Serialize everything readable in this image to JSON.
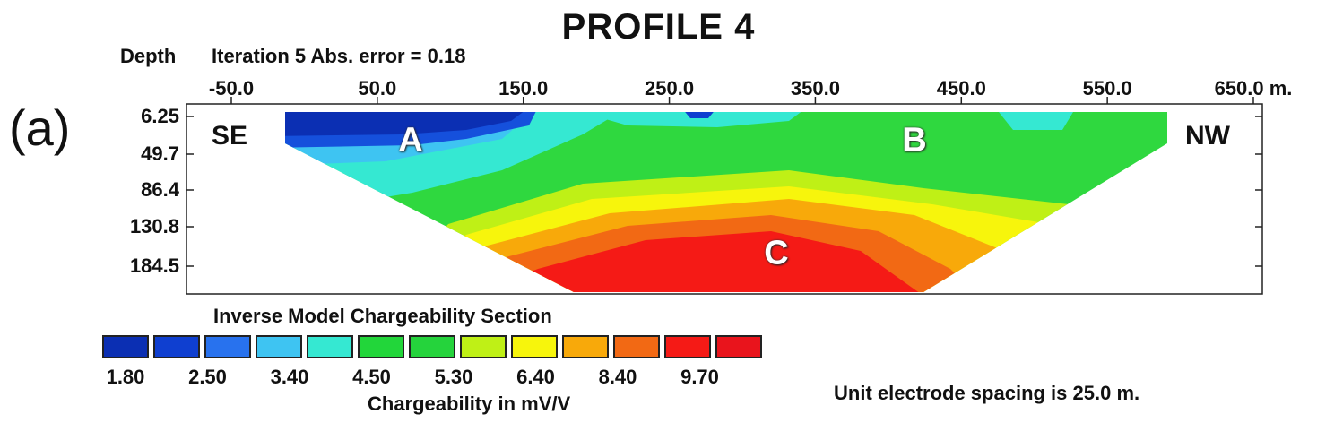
{
  "title": "PROFILE 4",
  "panel_label": "(a)",
  "header": {
    "depth_label": "Depth",
    "iteration_label": "Iteration 5 Abs. error = 0.18"
  },
  "chart_data": {
    "type": "heatmap",
    "title": "PROFILE 4",
    "x_ticks": [
      "-50.0",
      "50.0",
      "150.0",
      "250.0",
      "350.0",
      "450.0",
      "550.0",
      "650.0 m."
    ],
    "x_values": [
      -50,
      50,
      150,
      250,
      350,
      450,
      550,
      650
    ],
    "xlim": [
      -50,
      650
    ],
    "y_ticks": [
      "6.25",
      "49.7",
      "86.4",
      "130.8",
      "184.5"
    ],
    "y_values": [
      6.25,
      49.7,
      86.4,
      130.8,
      184.5
    ],
    "side_labels": {
      "left": "SE",
      "right": "NW"
    },
    "regions": [
      {
        "label": "A",
        "x": 50,
        "depth": 49.7
      },
      {
        "label": "B",
        "x": 410,
        "depth": 49.7
      },
      {
        "label": "C",
        "x": 260,
        "depth": 168
      }
    ],
    "legend_title": "Inverse Model Chargeability Section",
    "legend_colors": [
      "#0b2fb3",
      "#0f3fd0",
      "#2872ee",
      "#3ec4f2",
      "#35e8d2",
      "#22d63a",
      "#25d33c",
      "#bff016",
      "#f7f50c",
      "#f8a90a",
      "#f26914",
      "#f51a16",
      "#e9141c"
    ],
    "legend_values": [
      "1.80",
      "2.50",
      "3.40",
      "4.50",
      "5.30",
      "6.40",
      "8.40",
      "9.70"
    ],
    "colorbar_label": "Chargeability in mV/V",
    "footnote": "Unit electrode spacing is 25.0 m."
  }
}
